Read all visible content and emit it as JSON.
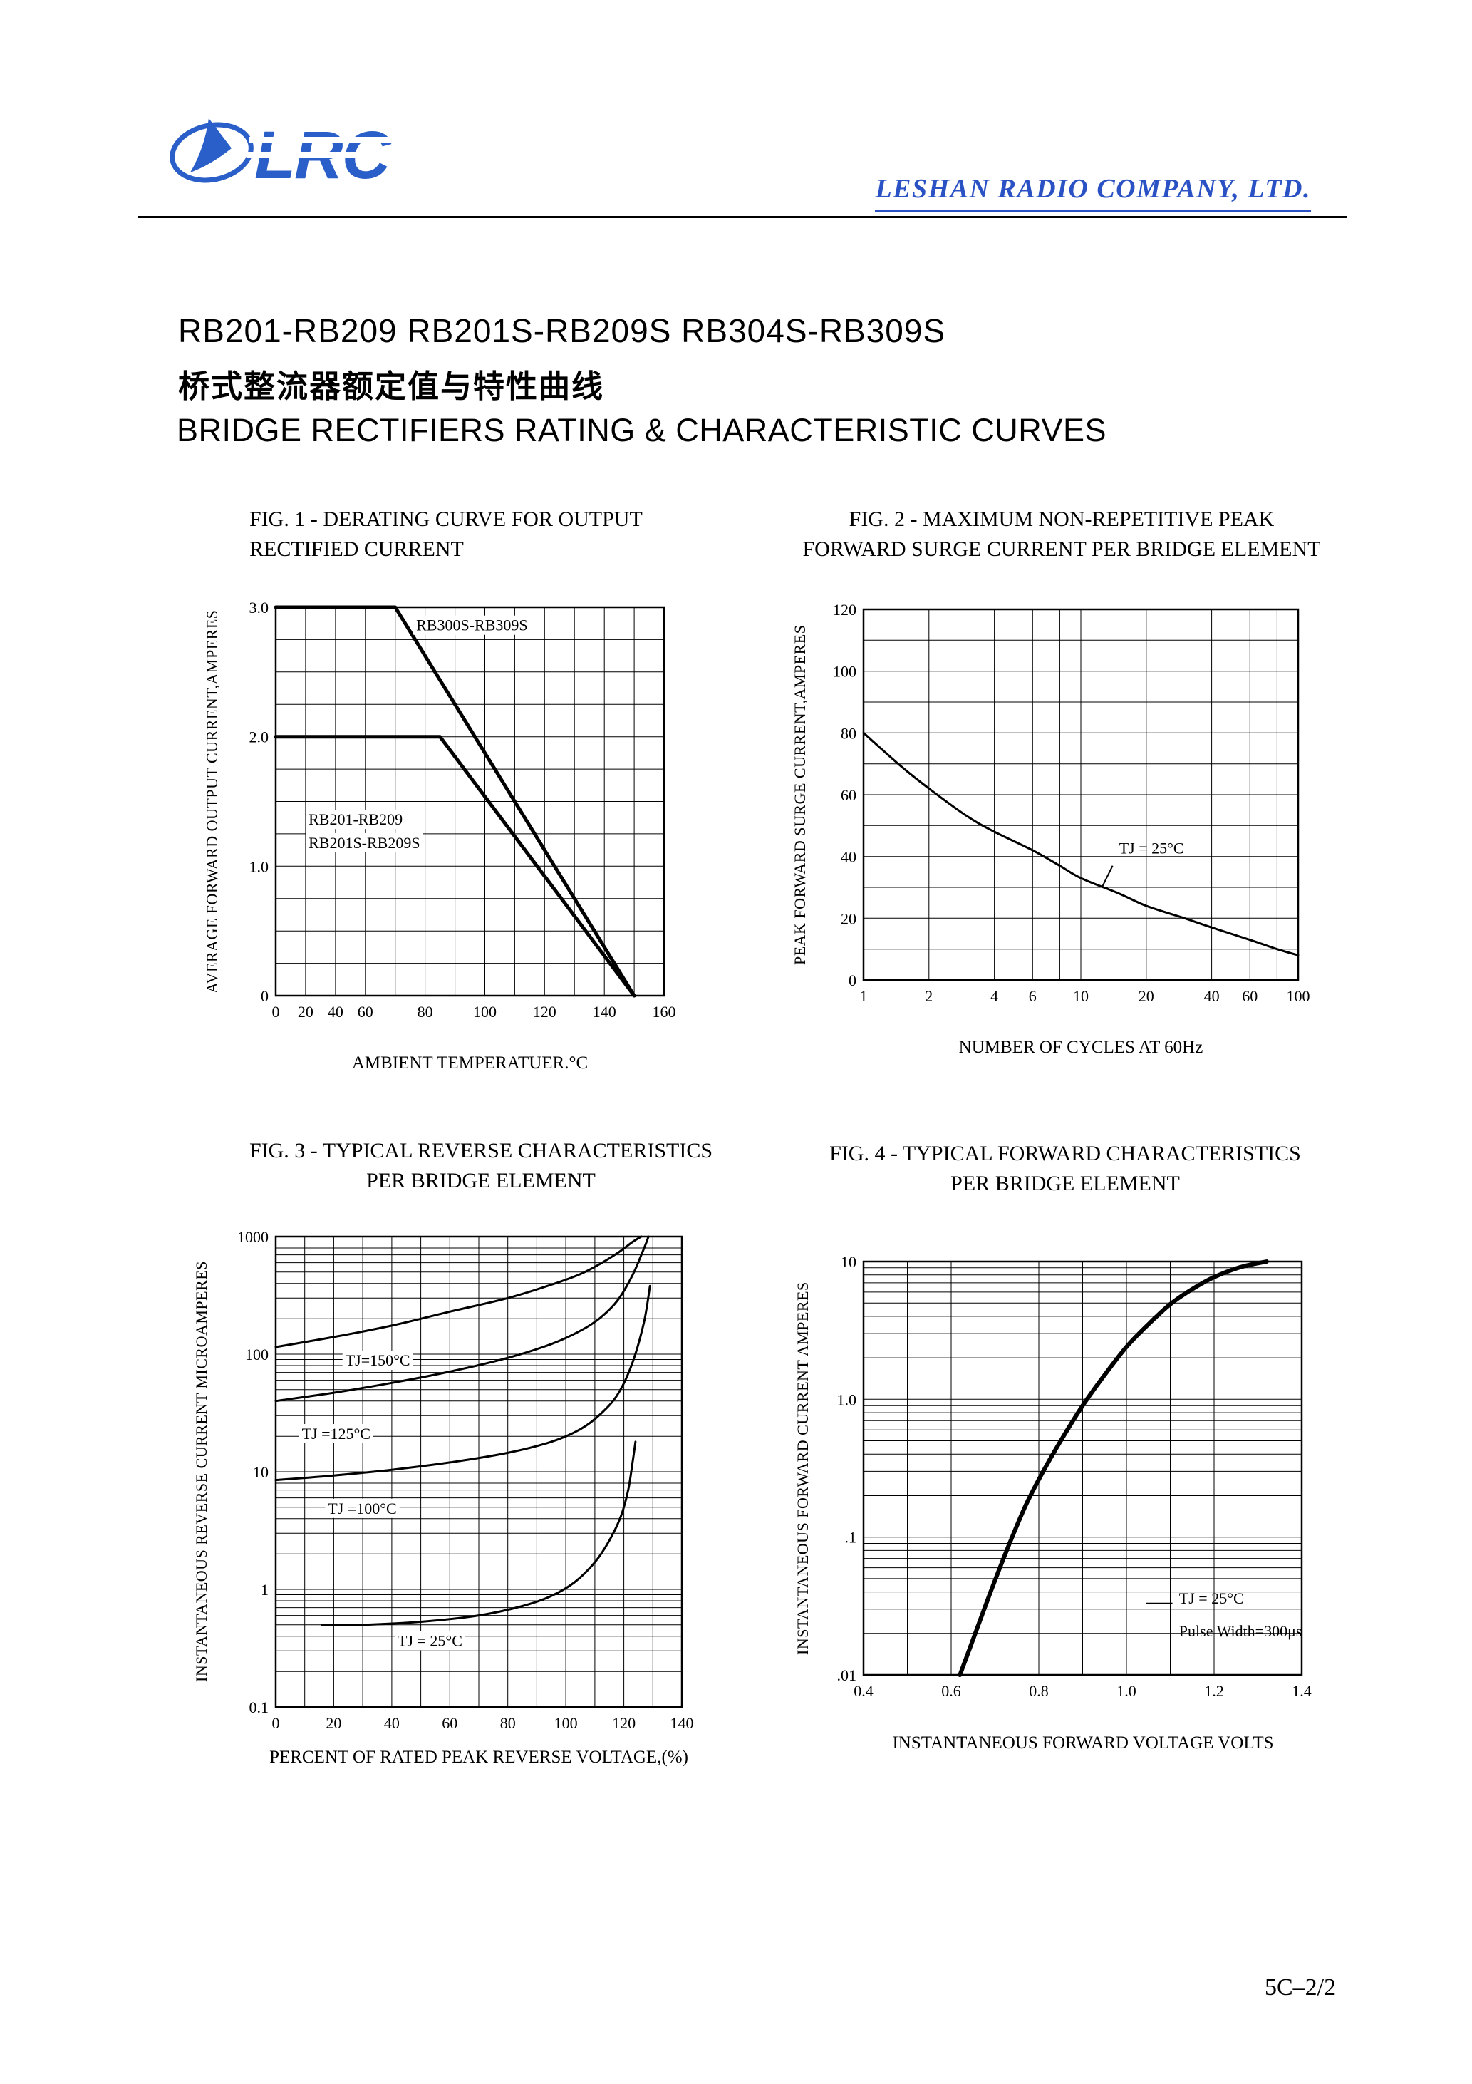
{
  "header": {
    "logo_text": "LRC",
    "company": "LESHAN RADIO COMPANY, LTD."
  },
  "colors": {
    "brand_blue": "#2a5ec8",
    "company_blue": "#2a52c4"
  },
  "title": {
    "part_numbers": "RB201-RB209 RB201S-RB209S RB304S-RB309S",
    "chinese": "桥式整流器额定值与特性曲线",
    "english": "BRIDGE RECTIFIERS RATING & CHARACTERISTIC CURVES"
  },
  "footer": {
    "page_number": "5C–2/2"
  },
  "chart_data": [
    {
      "id": "fig1",
      "type": "line",
      "title_lines": [
        "FIG. 1 - DERATING CURVE FOR OUTPUT",
        "RECTIFIED CURRENT"
      ],
      "xlabel": "AMBIENT TEMPERATUER.°C",
      "ylabel": "AVERAGE FORWARD OUTPUT CURRENT,AMPERES",
      "x_scale": {
        "type": "piecewise",
        "stops": [
          [
            0,
            0
          ],
          [
            60,
            0.2308
          ],
          [
            160,
            1
          ]
        ]
      },
      "y_scale": {
        "type": "linear",
        "min": 0,
        "max": 3
      },
      "x_grid": [
        0,
        20,
        40,
        60,
        70,
        80,
        90,
        100,
        110,
        120,
        130,
        140,
        150,
        160
      ],
      "x_ticks": [
        [
          0,
          "0"
        ],
        [
          20,
          "20"
        ],
        [
          40,
          "40"
        ],
        [
          60,
          "60"
        ],
        [
          80,
          "80"
        ],
        [
          100,
          "100"
        ],
        [
          120,
          "120"
        ],
        [
          140,
          "140"
        ],
        [
          160,
          "160"
        ]
      ],
      "y_grid_step": 0.25,
      "y_ticks": [
        [
          0,
          "0"
        ],
        [
          1,
          "1.0"
        ],
        [
          2,
          "2.0"
        ],
        [
          3,
          "3.0"
        ]
      ],
      "series": [
        {
          "name": "RB300S-RB309S",
          "points": [
            [
              0,
              3
            ],
            [
              70,
              3
            ],
            [
              150,
              0
            ]
          ],
          "width": 5
        },
        {
          "name": "RB201-RB209 / RB201S-RB209S",
          "points": [
            [
              0,
              2
            ],
            [
              85,
              2
            ],
            [
              150,
              0
            ]
          ],
          "width": 5
        }
      ],
      "annotations": [
        {
          "text": "RB300S-RB309S",
          "x": 77,
          "y": 2.82,
          "boxed": true
        },
        {
          "text": "RB201-RB209",
          "x": 22,
          "y": 1.32,
          "boxed": true
        },
        {
          "text": "RB201S-RB209S",
          "x": 22,
          "y": 1.14,
          "boxed": true
        }
      ]
    },
    {
      "id": "fig2",
      "type": "line",
      "title_lines": [
        "FIG. 2 - MAXIMUM NON-REPETITIVE PEAK",
        "FORWARD SURGE CURRENT PER BRIDGE ELEMENT"
      ],
      "xlabel": "NUMBER OF CYCLES AT 60Hz",
      "ylabel": "PEAK FORWARD SURGE CURRENT,AMPERES",
      "x_scale": {
        "type": "log",
        "min": 1,
        "max": 100
      },
      "y_scale": {
        "type": "linear",
        "min": 0,
        "max": 120
      },
      "x_grid": [
        1,
        2,
        4,
        6,
        8,
        10,
        20,
        40,
        60,
        80,
        100
      ],
      "x_ticks": [
        [
          1,
          "1"
        ],
        [
          2,
          "2"
        ],
        [
          4,
          "4"
        ],
        [
          6,
          "6"
        ],
        [
          10,
          "10"
        ],
        [
          20,
          "20"
        ],
        [
          40,
          "40"
        ],
        [
          60,
          "60"
        ],
        [
          100,
          "100"
        ]
      ],
      "y_grid_step": 10,
      "y_ticks": [
        [
          0,
          "0"
        ],
        [
          20,
          "20"
        ],
        [
          40,
          "40"
        ],
        [
          60,
          "60"
        ],
        [
          80,
          "80"
        ],
        [
          100,
          "100"
        ],
        [
          120,
          "120"
        ]
      ],
      "series": [
        {
          "name": "surge-current-TJ-25C",
          "points": [
            [
              1,
              80
            ],
            [
              1.5,
              69
            ],
            [
              2,
              62
            ],
            [
              3,
              53
            ],
            [
              4,
              48
            ],
            [
              6,
              42
            ],
            [
              8,
              37
            ],
            [
              10,
              33
            ],
            [
              15,
              28
            ],
            [
              20,
              24
            ],
            [
              30,
              20
            ],
            [
              40,
              17
            ],
            [
              60,
              13
            ],
            [
              80,
              10
            ],
            [
              100,
              8
            ]
          ],
          "width": 3,
          "smooth": true
        }
      ],
      "annotations": [
        {
          "text": "TJ = 25°C",
          "x": 15,
          "y": 41,
          "leader": [
            [
              14,
              37
            ],
            [
              12.5,
              30
            ]
          ]
        }
      ]
    },
    {
      "id": "fig3",
      "type": "line",
      "title_lines": [
        "FIG. 3 - TYPICAL REVERSE CHARACTERISTICS",
        "PER BRIDGE ELEMENT"
      ],
      "xlabel": "PERCENT OF RATED PEAK REVERSE VOLTAGE,(%)",
      "ylabel": "INSTANTANEOUS REVERSE CURRENT MICROAMPERES",
      "x_scale": {
        "type": "linear",
        "min": 0,
        "max": 140
      },
      "y_scale": {
        "type": "log",
        "min": 0.1,
        "max": 1000
      },
      "x_grid_step": 10,
      "x_ticks": [
        [
          0,
          "0"
        ],
        [
          20,
          "20"
        ],
        [
          40,
          "40"
        ],
        [
          60,
          "60"
        ],
        [
          80,
          "80"
        ],
        [
          100,
          "100"
        ],
        [
          120,
          "120"
        ],
        [
          140,
          "140"
        ]
      ],
      "y_grid": "log-minors",
      "y_ticks": [
        [
          0.1,
          "0.1"
        ],
        [
          1,
          "1"
        ],
        [
          10,
          "10"
        ],
        [
          100,
          "100"
        ],
        [
          1000,
          "1000"
        ]
      ],
      "series": [
        {
          "name": "TJ=150C",
          "points": [
            [
              0,
              115
            ],
            [
              20,
              140
            ],
            [
              40,
              175
            ],
            [
              60,
              230
            ],
            [
              80,
              300
            ],
            [
              95,
              390
            ],
            [
              105,
              480
            ],
            [
              112,
              590
            ],
            [
              118,
              730
            ],
            [
              123,
              900
            ],
            [
              126,
              1000
            ]
          ],
          "width": 3,
          "smooth": true
        },
        {
          "name": "TJ=125C",
          "points": [
            [
              0,
              40
            ],
            [
              20,
              47
            ],
            [
              40,
              57
            ],
            [
              60,
              71
            ],
            [
              80,
              93
            ],
            [
              95,
              122
            ],
            [
              105,
              158
            ],
            [
              112,
              205
            ],
            [
              118,
              290
            ],
            [
              123,
              470
            ],
            [
              127,
              800
            ],
            [
              128.5,
              1000
            ]
          ],
          "width": 3,
          "smooth": true
        },
        {
          "name": "TJ=100C",
          "points": [
            [
              0,
              8.5
            ],
            [
              20,
              9.3
            ],
            [
              40,
              10.4
            ],
            [
              60,
              12
            ],
            [
              80,
              14.5
            ],
            [
              95,
              18
            ],
            [
              105,
              23
            ],
            [
              112,
              31
            ],
            [
              118,
              46
            ],
            [
              123,
              85
            ],
            [
              127,
              190
            ],
            [
              129,
              380
            ]
          ],
          "width": 3,
          "smooth": true
        },
        {
          "name": "TJ=25C",
          "points": [
            [
              16,
              0.5
            ],
            [
              30,
              0.5
            ],
            [
              50,
              0.53
            ],
            [
              70,
              0.6
            ],
            [
              85,
              0.72
            ],
            [
              95,
              0.88
            ],
            [
              103,
              1.15
            ],
            [
              110,
              1.7
            ],
            [
              115,
              2.6
            ],
            [
              119,
              4.2
            ],
            [
              121.5,
              7
            ],
            [
              123,
              12
            ],
            [
              124,
              18
            ]
          ],
          "width": 3,
          "smooth": true
        }
      ],
      "annotations": [
        {
          "text": "TJ=150°C",
          "x": 24,
          "y": 80,
          "boxed": true
        },
        {
          "text": "TJ =125°C",
          "x": 9,
          "y": 19,
          "boxed": true
        },
        {
          "text": "TJ =100°C",
          "x": 18,
          "y": 4.4,
          "boxed": true
        },
        {
          "text": "TJ = 25°C",
          "x": 42,
          "y": 0.33,
          "boxed": true
        }
      ]
    },
    {
      "id": "fig4",
      "type": "line",
      "title_lines": [
        "FIG. 4 - TYPICAL FORWARD CHARACTERISTICS",
        "PER BRIDGE ELEMENT"
      ],
      "xlabel": "INSTANTANEOUS FORWARD VOLTAGE VOLTS",
      "ylabel": "INSTANTANEOUS FORWARD CURRENT AMPERES",
      "x_scale": {
        "type": "linear",
        "min": 0.4,
        "max": 1.4
      },
      "y_scale": {
        "type": "log",
        "min": 0.01,
        "max": 10
      },
      "x_grid_step": 0.1,
      "x_ticks": [
        [
          0.4,
          "0.4"
        ],
        [
          0.6,
          "0.6"
        ],
        [
          0.8,
          "0.8"
        ],
        [
          1.0,
          "1.0"
        ],
        [
          1.2,
          "1.2"
        ],
        [
          1.4,
          "1.4"
        ]
      ],
      "y_grid": "log-minors",
      "y_ticks": [
        [
          0.01,
          ".01"
        ],
        [
          0.1,
          ".1"
        ],
        [
          1,
          "1.0"
        ],
        [
          10,
          "10"
        ]
      ],
      "series": [
        {
          "name": "forward-TJ-25C",
          "points": [
            [
              0.62,
              0.01
            ],
            [
              0.655,
              0.02
            ],
            [
              0.69,
              0.04
            ],
            [
              0.73,
              0.085
            ],
            [
              0.77,
              0.17
            ],
            [
              0.81,
              0.3
            ],
            [
              0.85,
              0.5
            ],
            [
              0.9,
              0.9
            ],
            [
              0.95,
              1.5
            ],
            [
              1.0,
              2.4
            ],
            [
              1.05,
              3.5
            ],
            [
              1.1,
              4.9
            ],
            [
              1.15,
              6.3
            ],
            [
              1.2,
              7.7
            ],
            [
              1.26,
              9.1
            ],
            [
              1.32,
              10
            ]
          ],
          "width": 6,
          "smooth": true
        }
      ],
      "annotations": [
        {
          "text": "TJ = 25°C",
          "x": 1.12,
          "y": 0.033,
          "leader": [
            [
              1.045,
              0.033
            ],
            [
              1.105,
              0.033
            ]
          ]
        },
        {
          "text": "Pulse Width=300μs",
          "x": 1.12,
          "y": 0.019
        }
      ]
    }
  ]
}
